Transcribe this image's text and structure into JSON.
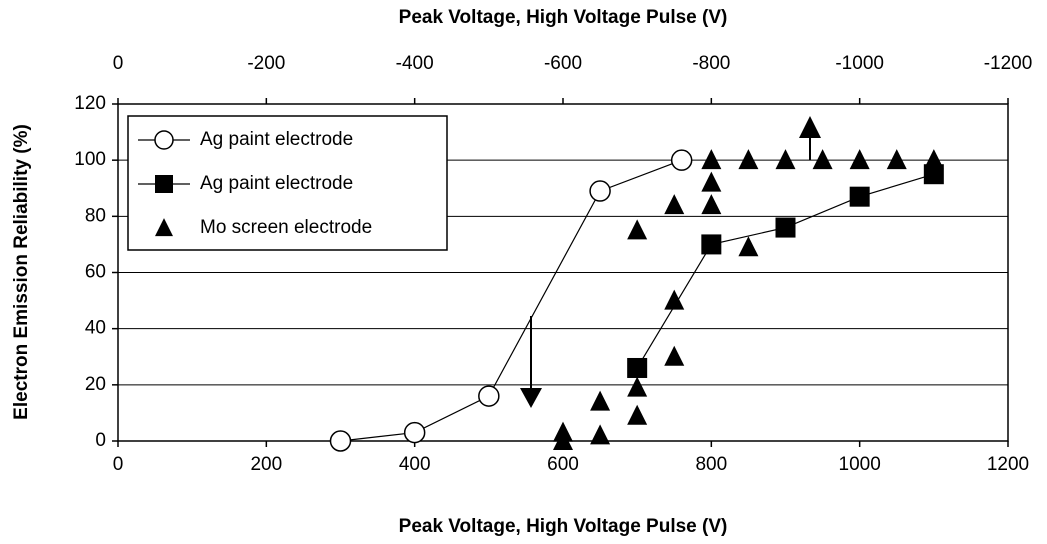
{
  "chart_data": {
    "type": "scatter",
    "xlabel": "Peak Voltage, High Voltage Pulse (V)",
    "x2label": "Peak Voltage, High Voltage Pulse (V)",
    "ylabel": "Electron Emission Reliability (%)",
    "xlim": [
      0,
      1200
    ],
    "xticks": [
      0,
      200,
      400,
      600,
      800,
      1000,
      1200
    ],
    "x2lim": [
      0,
      -1200
    ],
    "x2ticks": [
      0,
      -200,
      -400,
      -600,
      -800,
      -1000,
      -1200
    ],
    "ylim": [
      0,
      120
    ],
    "yticks": [
      0,
      20,
      40,
      60,
      80,
      100,
      120
    ],
    "grid": "y",
    "legend": "upper left",
    "series": [
      {
        "name": "Ag paint electrode",
        "color": "#000000",
        "marker": "open-circle",
        "line": true,
        "x": [
          300,
          400,
          500,
          650,
          760
        ],
        "values": [
          0,
          3,
          16,
          89,
          100
        ]
      },
      {
        "name": "Ag paint electrode",
        "color": "#000000",
        "marker": "square",
        "line": true,
        "x": [
          700,
          800,
          900,
          1000,
          1100
        ],
        "values": [
          26,
          70,
          76,
          87,
          95
        ]
      },
      {
        "name": "Mo screen electrode",
        "color": "#000000",
        "marker": "triangle",
        "line": false,
        "x": [
          600,
          600,
          650,
          650,
          700,
          700,
          700,
          750,
          750,
          750,
          800,
          800,
          800,
          850,
          850,
          900,
          950,
          1000,
          1050,
          1100
        ],
        "values": [
          3,
          0,
          14,
          2,
          75,
          19,
          9,
          84,
          50,
          30,
          100,
          92,
          84,
          100,
          69,
          100,
          100,
          100,
          100,
          100
        ]
      }
    ]
  }
}
